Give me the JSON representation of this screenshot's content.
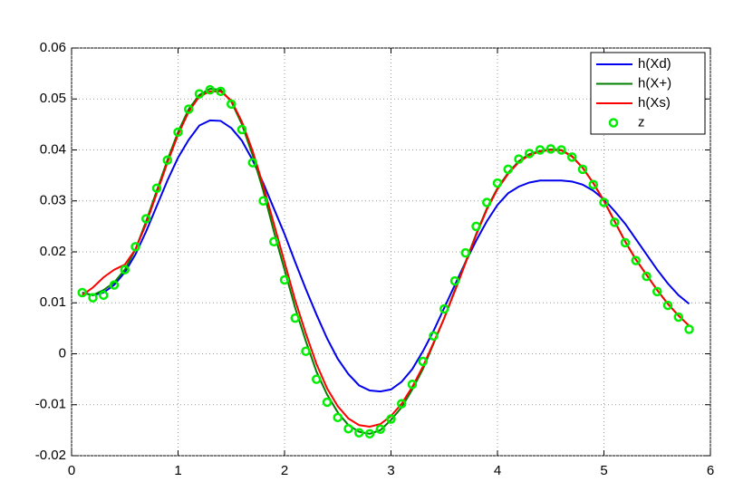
{
  "chart_data": {
    "type": "line",
    "x": [
      0.1,
      0.2,
      0.3,
      0.4,
      0.5,
      0.6,
      0.7,
      0.8,
      0.9,
      1.0,
      1.1,
      1.2,
      1.3,
      1.4,
      1.5,
      1.6,
      1.7,
      1.8,
      1.9,
      2.0,
      2.1,
      2.2,
      2.3,
      2.4,
      2.5,
      2.6,
      2.7,
      2.8,
      2.9,
      3.0,
      3.1,
      3.2,
      3.3,
      3.4,
      3.5,
      3.6,
      3.7,
      3.8,
      3.9,
      4.0,
      4.1,
      4.2,
      4.3,
      4.4,
      4.5,
      4.6,
      4.7,
      4.8,
      4.9,
      5.0,
      5.1,
      5.2,
      5.3,
      5.4,
      5.5,
      5.6,
      5.7,
      5.8
    ],
    "series": [
      {
        "name": "h(Xd)",
        "color": "#0000ee",
        "values": [
          0.012,
          0.0115,
          0.012,
          0.0135,
          0.016,
          0.0195,
          0.024,
          0.029,
          0.034,
          0.0385,
          0.042,
          0.0448,
          0.0458,
          0.0457,
          0.0443,
          0.0418,
          0.038,
          0.0335,
          0.0285,
          0.0235,
          0.018,
          0.0127,
          0.0077,
          0.003,
          -0.001,
          -0.004,
          -0.0062,
          -0.0072,
          -0.0074,
          -0.007,
          -0.0055,
          -0.003,
          0.0005,
          0.0045,
          0.009,
          0.0135,
          0.018,
          0.0222,
          0.026,
          0.0292,
          0.0315,
          0.0328,
          0.0336,
          0.034,
          0.034,
          0.034,
          0.0338,
          0.0332,
          0.032,
          0.0303,
          0.028,
          0.0255,
          0.0225,
          0.0195,
          0.0165,
          0.0138,
          0.0115,
          0.0098
        ]
      },
      {
        "name": "h(X+)",
        "color": "#007f00",
        "values": [
          0.012,
          0.0115,
          0.0125,
          0.014,
          0.0165,
          0.0205,
          0.026,
          0.032,
          0.038,
          0.0435,
          0.048,
          0.0508,
          0.052,
          0.0518,
          0.0495,
          0.045,
          0.039,
          0.032,
          0.024,
          0.0165,
          0.009,
          0.0025,
          -0.0035,
          -0.008,
          -0.0115,
          -0.014,
          -0.0153,
          -0.0157,
          -0.015,
          -0.013,
          -0.0105,
          -0.007,
          -0.003,
          0.002,
          0.007,
          0.0125,
          0.018,
          0.0235,
          0.0285,
          0.0325,
          0.0355,
          0.0378,
          0.0392,
          0.0398,
          0.0401,
          0.04,
          0.0388,
          0.0365,
          0.0335,
          0.03,
          0.026,
          0.022,
          0.0185,
          0.0155,
          0.0125,
          0.0098,
          0.0075,
          0.0055
        ]
      },
      {
        "name": "h(Xs)",
        "color": "#ff0000",
        "values": [
          0.0115,
          0.013,
          0.015,
          0.0165,
          0.0175,
          0.0205,
          0.0255,
          0.0315,
          0.0375,
          0.043,
          0.0475,
          0.0505,
          0.0515,
          0.0515,
          0.0497,
          0.0455,
          0.0398,
          0.033,
          0.0255,
          0.018,
          0.0105,
          0.004,
          -0.002,
          -0.0068,
          -0.0103,
          -0.0127,
          -0.014,
          -0.0143,
          -0.0138,
          -0.0122,
          -0.0098,
          -0.0065,
          -0.0025,
          0.0022,
          0.007,
          0.0123,
          0.0178,
          0.0233,
          0.0283,
          0.0323,
          0.0353,
          0.0376,
          0.039,
          0.0397,
          0.04,
          0.0399,
          0.0387,
          0.0365,
          0.0335,
          0.03,
          0.026,
          0.022,
          0.0185,
          0.0155,
          0.0125,
          0.0098,
          0.0075,
          0.0055
        ]
      },
      {
        "name": "z",
        "color": "#00ee00",
        "marker": "o",
        "values": [
          0.012,
          0.011,
          0.0115,
          0.0135,
          0.0165,
          0.021,
          0.0265,
          0.0325,
          0.038,
          0.0435,
          0.048,
          0.051,
          0.0518,
          0.0515,
          0.049,
          0.044,
          0.0375,
          0.03,
          0.022,
          0.0145,
          0.007,
          0.0005,
          -0.005,
          -0.0095,
          -0.0125,
          -0.0147,
          -0.0155,
          -0.0157,
          -0.0148,
          -0.0128,
          -0.0098,
          -0.006,
          -0.0015,
          0.0035,
          0.0088,
          0.0143,
          0.0198,
          0.025,
          0.0297,
          0.0335,
          0.0362,
          0.0382,
          0.0393,
          0.04,
          0.0402,
          0.04,
          0.0386,
          0.0362,
          0.0332,
          0.0297,
          0.0258,
          0.0218,
          0.0183,
          0.0152,
          0.0122,
          0.0095,
          0.0072,
          0.0048
        ]
      }
    ],
    "xlim": [
      0,
      6
    ],
    "xticks": [
      0,
      1,
      2,
      3,
      4,
      5,
      6
    ],
    "ylim": [
      -0.02,
      0.06
    ],
    "yticks": [
      -0.02,
      -0.01,
      0,
      0.01,
      0.02,
      0.03,
      0.04,
      0.05,
      0.06
    ],
    "grid": true,
    "legend": "northeast"
  }
}
